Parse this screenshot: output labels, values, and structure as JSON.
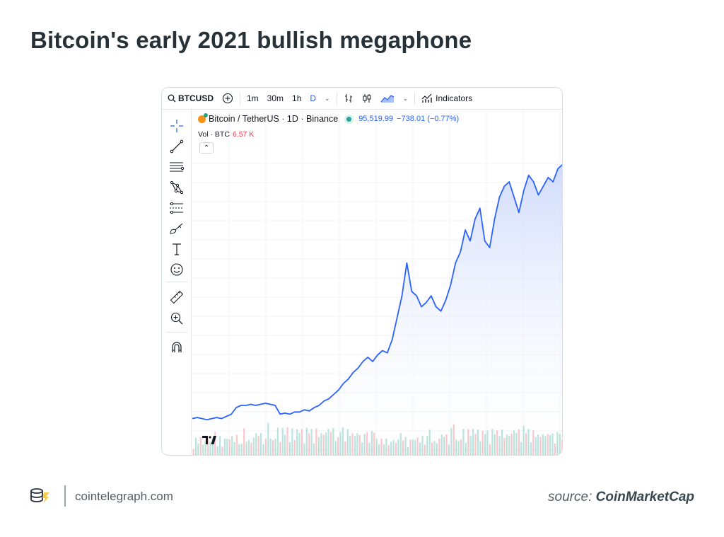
{
  "title": "Bitcoin's early 2021 bullish megaphone",
  "toolbar": {
    "symbol": "BTCUSD",
    "intervals": [
      "1m",
      "30m",
      "1h",
      "D"
    ],
    "active_interval": "D",
    "indicators_label": "Indicators"
  },
  "legend": {
    "pair": "Bitcoin / TetherUS · 1D · Binance",
    "price": "95,519.99",
    "change": "−738.01 (−0.77%)",
    "vol_label": "Vol · BTC",
    "vol_value": "6.57 K"
  },
  "tv_logo_text": "TV",
  "footer": {
    "domain": "cointelegraph.com",
    "source_prefix": "source:",
    "source_name": "CoinMarketCap"
  },
  "colors": {
    "line": "#2962ff",
    "area_top": "#c9d6fb",
    "vol_up": "#8fd2c6",
    "vol_down": "#f5a3a9",
    "accent": "#f7931a"
  },
  "icons": [
    "crosshair-icon",
    "trend-line-icon",
    "fib-icon",
    "pattern-icon",
    "forecast-icon",
    "brush-icon",
    "text-icon",
    "emoji-icon",
    "ruler-icon",
    "zoom-in-icon",
    "magnet-icon"
  ],
  "chart_data": {
    "type": "area",
    "series": [
      {
        "values": [
          0.04,
          0.045,
          0.04,
          0.035,
          0.04,
          0.045,
          0.04,
          0.05,
          0.06,
          0.09,
          0.1,
          0.1,
          0.105,
          0.1,
          0.105,
          0.11,
          0.105,
          0.1,
          0.06,
          0.065,
          0.06,
          0.07,
          0.07,
          0.08,
          0.075,
          0.09,
          0.1,
          0.12,
          0.13,
          0.15,
          0.17,
          0.2,
          0.22,
          0.25,
          0.27,
          0.3,
          0.32,
          0.3,
          0.33,
          0.35,
          0.34,
          0.4,
          0.5,
          0.6,
          0.75,
          0.62,
          0.6,
          0.55,
          0.57,
          0.6,
          0.55,
          0.53,
          0.58,
          0.65,
          0.75,
          0.8,
          0.9,
          0.85,
          0.95,
          1.0,
          0.85,
          0.82,
          0.95,
          1.05,
          1.1,
          1.12,
          1.05,
          0.98,
          1.08,
          1.15,
          1.12,
          1.06,
          1.1,
          1.14,
          1.12,
          1.18,
          1.2
        ]
      }
    ],
    "volume": [
      0.3,
      0.5,
      0.4,
      0.7,
      0.3,
      0.45,
      0.6,
      0.35,
      0.5,
      0.8,
      0.4,
      0.55,
      0.3,
      0.65,
      0.45,
      0.5,
      0.7,
      0.35,
      0.6,
      0.4,
      0.5,
      0.75,
      0.45,
      0.6,
      0.35,
      0.55,
      0.8,
      0.5,
      0.65,
      0.4,
      0.7,
      0.9,
      0.55,
      0.6,
      0.45,
      0.85,
      0.5,
      0.7,
      0.6,
      0.95,
      0.55,
      0.75,
      0.5,
      1.0,
      0.6,
      0.8,
      0.45,
      0.7,
      0.65,
      0.9,
      0.5,
      0.75,
      0.6,
      0.85,
      0.55,
      0.7,
      0.95,
      0.6,
      0.8,
      0.5,
      0.75,
      0.65,
      0.9,
      0.55,
      0.7,
      0.6,
      0.8,
      0.5,
      0.65,
      0.7,
      0.55,
      0.6,
      0.75,
      0.5,
      0.65,
      0.7,
      0.6
    ],
    "grid": true
  }
}
